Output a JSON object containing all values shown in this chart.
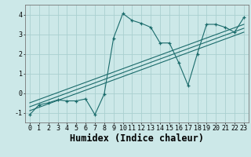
{
  "xlabel": "Humidex (Indice chaleur)",
  "bg_color": "#cce8e8",
  "line_color": "#1a6b6b",
  "grid_color": "#aad0d0",
  "xlim": [
    -0.5,
    23.5
  ],
  "ylim": [
    -1.5,
    4.5
  ],
  "xticks": [
    0,
    1,
    2,
    3,
    4,
    5,
    6,
    7,
    8,
    9,
    10,
    11,
    12,
    13,
    14,
    15,
    16,
    17,
    18,
    19,
    20,
    21,
    22,
    23
  ],
  "yticks": [
    -1,
    0,
    1,
    2,
    3,
    4
  ],
  "series": [
    [
      0,
      -1.1
    ],
    [
      1,
      -0.6
    ],
    [
      2,
      -0.5
    ],
    [
      3,
      -0.35
    ],
    [
      4,
      -0.4
    ],
    [
      5,
      -0.4
    ],
    [
      6,
      -0.3
    ],
    [
      7,
      -1.1
    ],
    [
      8,
      -0.05
    ],
    [
      9,
      2.8
    ],
    [
      10,
      4.05
    ],
    [
      11,
      3.7
    ],
    [
      12,
      3.55
    ],
    [
      13,
      3.35
    ],
    [
      14,
      2.55
    ],
    [
      15,
      2.55
    ],
    [
      16,
      1.55
    ],
    [
      17,
      0.4
    ],
    [
      18,
      2.0
    ],
    [
      19,
      3.5
    ],
    [
      20,
      3.5
    ],
    [
      21,
      3.35
    ],
    [
      22,
      3.1
    ],
    [
      23,
      3.85
    ]
  ],
  "regression_lines": [
    {
      "x": [
        0,
        23
      ],
      "y": [
        -0.9,
        3.1
      ]
    },
    {
      "x": [
        0,
        23
      ],
      "y": [
        -0.7,
        3.3
      ]
    },
    {
      "x": [
        0,
        23
      ],
      "y": [
        -0.5,
        3.5
      ]
    }
  ],
  "tick_fontsize": 6.0,
  "xlabel_fontsize": 8.5
}
